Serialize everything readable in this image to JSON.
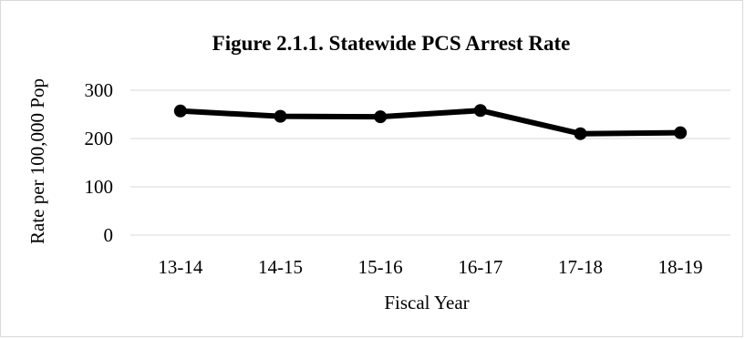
{
  "chart_data": {
    "type": "line",
    "title": "Figure 2.1.1. Statewide PCS Arrest Rate",
    "xlabel": "Fiscal Year",
    "ylabel": "Rate per 100,000 Pop",
    "categories": [
      "13-14",
      "14-15",
      "15-16",
      "16-17",
      "17-18",
      "18-19"
    ],
    "series": [
      {
        "values": [
          257,
          246,
          245,
          258,
          210,
          212
        ],
        "color": "#000000"
      }
    ],
    "ylim": [
      0,
      300
    ],
    "yticks": [
      0,
      100,
      200,
      300
    ],
    "grid": "horizontal",
    "legend": "none",
    "marker": "circle"
  }
}
